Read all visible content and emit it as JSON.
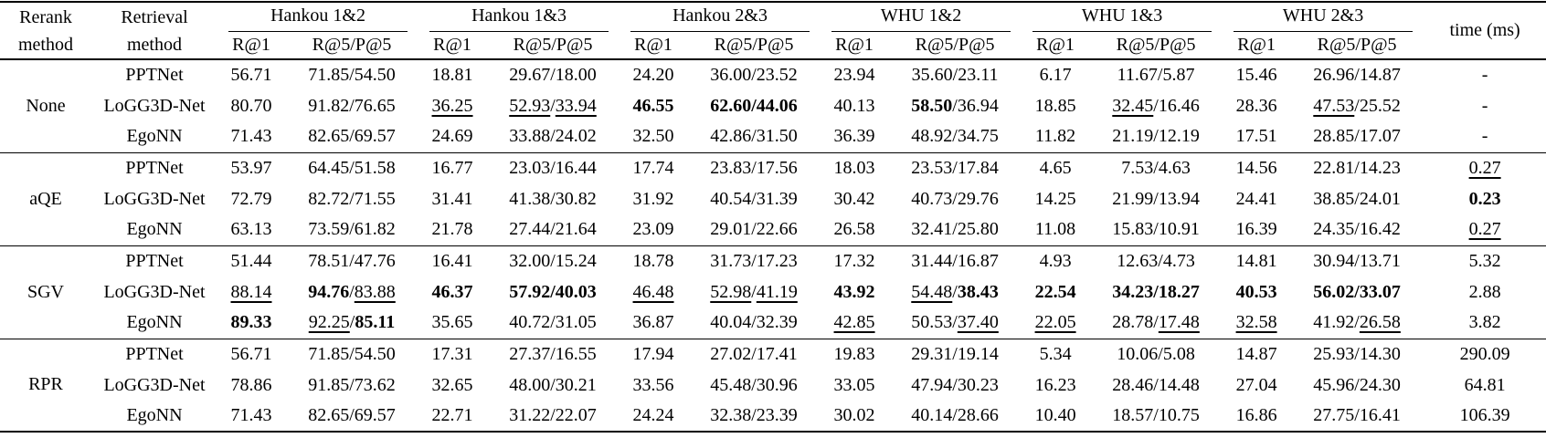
{
  "table": {
    "header": {
      "rerank_line1": "Rerank",
      "rerank_line2": "method",
      "retrieval_line1": "Retrieval",
      "retrieval_line2": "method",
      "groups": [
        "Hankou 1&2",
        "Hankou 1&3",
        "Hankou 2&3",
        "WHU 1&2",
        "WHU 1&3",
        "WHU 2&3"
      ],
      "sub_r1": "R@1",
      "sub_r5p5": "R@5/P@5",
      "time": "time (ms)"
    },
    "row_groups": [
      {
        "rerank": "None",
        "rows": [
          {
            "retrieval": "PPTNet",
            "cells": [
              "56.71",
              "71.85/54.50",
              "18.81",
              "29.67/18.00",
              "24.20",
              "36.00/23.52",
              "23.94",
              "35.60/23.11",
              "6.17",
              "11.67/5.87",
              "15.46",
              "26.96/14.87",
              "-"
            ]
          },
          {
            "retrieval": "LoGG3D-Net",
            "cells": [
              "80.70",
              "91.82/76.65",
              [
                [
                  "36.25",
                  "u"
                ]
              ],
              [
                [
                  "52.93",
                  "u"
                ],
                [
                  "/",
                  "p"
                ],
                [
                  "33.94",
                  "u"
                ]
              ],
              [
                [
                  "46.55",
                  "b"
                ]
              ],
              [
                [
                  "62.60/44.06",
                  "b"
                ]
              ],
              "40.13",
              [
                [
                  "58.50",
                  "b"
                ],
                [
                  "/36.94",
                  "p"
                ]
              ],
              "18.85",
              [
                [
                  "32.45",
                  "u"
                ],
                [
                  "/16.46",
                  "p"
                ]
              ],
              "28.36",
              [
                [
                  "47.53",
                  "u"
                ],
                [
                  "/25.52",
                  "p"
                ]
              ],
              "-"
            ]
          },
          {
            "retrieval": "EgoNN",
            "cells": [
              "71.43",
              "82.65/69.57",
              "24.69",
              "33.88/24.02",
              "32.50",
              "42.86/31.50",
              "36.39",
              "48.92/34.75",
              "11.82",
              "21.19/12.19",
              "17.51",
              "28.85/17.07",
              "-"
            ]
          }
        ]
      },
      {
        "rerank": "aQE",
        "rows": [
          {
            "retrieval": "PPTNet",
            "cells": [
              "53.97",
              "64.45/51.58",
              "16.77",
              "23.03/16.44",
              "17.74",
              "23.83/17.56",
              "18.03",
              "23.53/17.84",
              "4.65",
              "7.53/4.63",
              "14.56",
              "22.81/14.23",
              [
                [
                  "0.27",
                  "u"
                ]
              ]
            ]
          },
          {
            "retrieval": "LoGG3D-Net",
            "cells": [
              "72.79",
              "82.72/71.55",
              "31.41",
              "41.38/30.82",
              "31.92",
              "40.54/31.39",
              "30.42",
              "40.73/29.76",
              "14.25",
              "21.99/13.94",
              "24.41",
              "38.85/24.01",
              [
                [
                  "0.23",
                  "b"
                ]
              ]
            ]
          },
          {
            "retrieval": "EgoNN",
            "cells": [
              "63.13",
              "73.59/61.82",
              "21.78",
              "27.44/21.64",
              "23.09",
              "29.01/22.66",
              "26.58",
              "32.41/25.80",
              "11.08",
              "15.83/10.91",
              "16.39",
              "24.35/16.42",
              [
                [
                  "0.27",
                  "u"
                ]
              ]
            ]
          }
        ]
      },
      {
        "rerank": "SGV",
        "rows": [
          {
            "retrieval": "PPTNet",
            "cells": [
              "51.44",
              "78.51/47.76",
              "16.41",
              "32.00/15.24",
              "18.78",
              "31.73/17.23",
              "17.32",
              "31.44/16.87",
              "4.93",
              "12.63/4.73",
              "14.81",
              "30.94/13.71",
              "5.32"
            ]
          },
          {
            "retrieval": "LoGG3D-Net",
            "cells": [
              [
                [
                  "88.14",
                  "u"
                ]
              ],
              [
                [
                  "94.76",
                  "b"
                ],
                [
                  "/",
                  "p"
                ],
                [
                  "83.88",
                  "u"
                ]
              ],
              [
                [
                  "46.37",
                  "b"
                ]
              ],
              [
                [
                  "57.92/40.03",
                  "b"
                ]
              ],
              [
                [
                  "46.48",
                  "u"
                ]
              ],
              [
                [
                  "52.98",
                  "u"
                ],
                [
                  "/",
                  "p"
                ],
                [
                  "41.19",
                  "u"
                ]
              ],
              [
                [
                  "43.92",
                  "b"
                ]
              ],
              [
                [
                  "54.48",
                  "u"
                ],
                [
                  "/",
                  "p"
                ],
                [
                  "38.43",
                  "b"
                ]
              ],
              [
                [
                  "22.54",
                  "b"
                ]
              ],
              [
                [
                  "34.23/18.27",
                  "b"
                ]
              ],
              [
                [
                  "40.53",
                  "b"
                ]
              ],
              [
                [
                  "56.02/33.07",
                  "b"
                ]
              ],
              "2.88"
            ]
          },
          {
            "retrieval": "EgoNN",
            "cells": [
              [
                [
                  "89.33",
                  "b"
                ]
              ],
              [
                [
                  "92.25",
                  "u"
                ],
                [
                  "/",
                  "p"
                ],
                [
                  "85.11",
                  "b"
                ]
              ],
              "35.65",
              "40.72/31.05",
              "36.87",
              "40.04/32.39",
              [
                [
                  "42.85",
                  "u"
                ]
              ],
              [
                [
                  "50.53/",
                  "p"
                ],
                [
                  "37.40",
                  "u"
                ]
              ],
              [
                [
                  "22.05",
                  "u"
                ]
              ],
              [
                [
                  "28.78/",
                  "p"
                ],
                [
                  "17.48",
                  "u"
                ]
              ],
              [
                [
                  "32.58",
                  "u"
                ]
              ],
              [
                [
                  "41.92/",
                  "p"
                ],
                [
                  "26.58",
                  "u"
                ]
              ],
              "3.82"
            ]
          }
        ]
      },
      {
        "rerank": "RPR",
        "rows": [
          {
            "retrieval": "PPTNet",
            "cells": [
              "56.71",
              "71.85/54.50",
              "17.31",
              "27.37/16.55",
              "17.94",
              "27.02/17.41",
              "19.83",
              "29.31/19.14",
              "5.34",
              "10.06/5.08",
              "14.87",
              "25.93/14.30",
              "290.09"
            ]
          },
          {
            "retrieval": "LoGG3D-Net",
            "cells": [
              "78.86",
              "91.85/73.62",
              "32.65",
              "48.00/30.21",
              "33.56",
              "45.48/30.96",
              "33.05",
              "47.94/30.23",
              "16.23",
              "28.46/14.48",
              "27.04",
              "45.96/24.30",
              "64.81"
            ]
          },
          {
            "retrieval": "EgoNN",
            "cells": [
              "71.43",
              "82.65/69.57",
              "22.71",
              "31.22/22.07",
              "24.24",
              "32.38/23.39",
              "30.02",
              "40.14/28.66",
              "10.40",
              "18.57/10.75",
              "16.86",
              "27.75/16.41",
              "106.39"
            ]
          }
        ]
      }
    ]
  }
}
